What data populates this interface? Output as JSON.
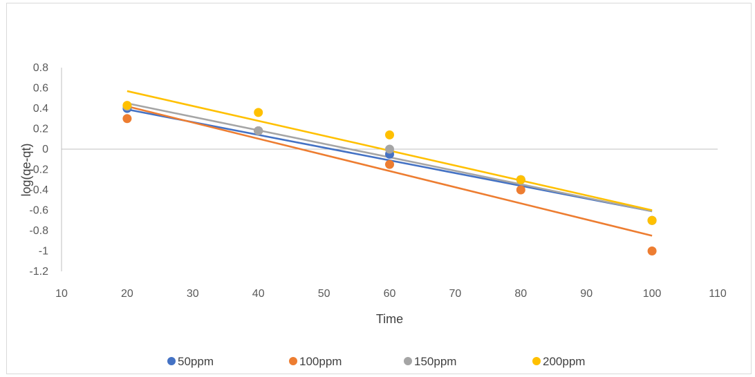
{
  "chart_data": {
    "type": "scatter",
    "title": "",
    "xlabel": "Time",
    "ylabel": "log(qe-qt)",
    "xlim": [
      10,
      110
    ],
    "ylim": [
      -1.2,
      0.8
    ],
    "x_ticks": [
      "10",
      "20",
      "30",
      "40",
      "50",
      "60",
      "70",
      "80",
      "90",
      "100",
      "110"
    ],
    "y_ticks": [
      "0.8",
      "0.6",
      "0.4",
      "0.2",
      "0",
      "-0.2",
      "-0.4",
      "-0.6",
      "-0.8",
      "-1",
      "-1.2"
    ],
    "grid": false,
    "legend_position": "bottom",
    "series": [
      {
        "name": "50ppm",
        "color": "#4472c4",
        "x": [
          20,
          40,
          60,
          80,
          100
        ],
        "y": [
          0.4,
          0.18,
          -0.05,
          -0.3,
          -0.7
        ],
        "trendline": [
          0.39,
          -0.61
        ]
      },
      {
        "name": "100ppm",
        "color": "#ed7d31",
        "x": [
          20,
          40,
          60,
          80,
          100
        ],
        "y": [
          0.3,
          0.18,
          -0.15,
          -0.4,
          -1.0
        ],
        "trendline": [
          0.42,
          -0.85
        ]
      },
      {
        "name": "150ppm",
        "color": "#a5a5a5",
        "x": [
          20,
          40,
          60,
          80,
          100
        ],
        "y": [
          0.42,
          0.18,
          0.0,
          -0.3,
          -0.7
        ],
        "trendline": [
          0.45,
          -0.61
        ]
      },
      {
        "name": "200ppm",
        "color": "#ffc000",
        "x": [
          20,
          40,
          60,
          80,
          100
        ],
        "y": [
          0.43,
          0.36,
          0.14,
          -0.3,
          -0.7
        ],
        "trendline": [
          0.57,
          -0.6
        ]
      }
    ]
  }
}
